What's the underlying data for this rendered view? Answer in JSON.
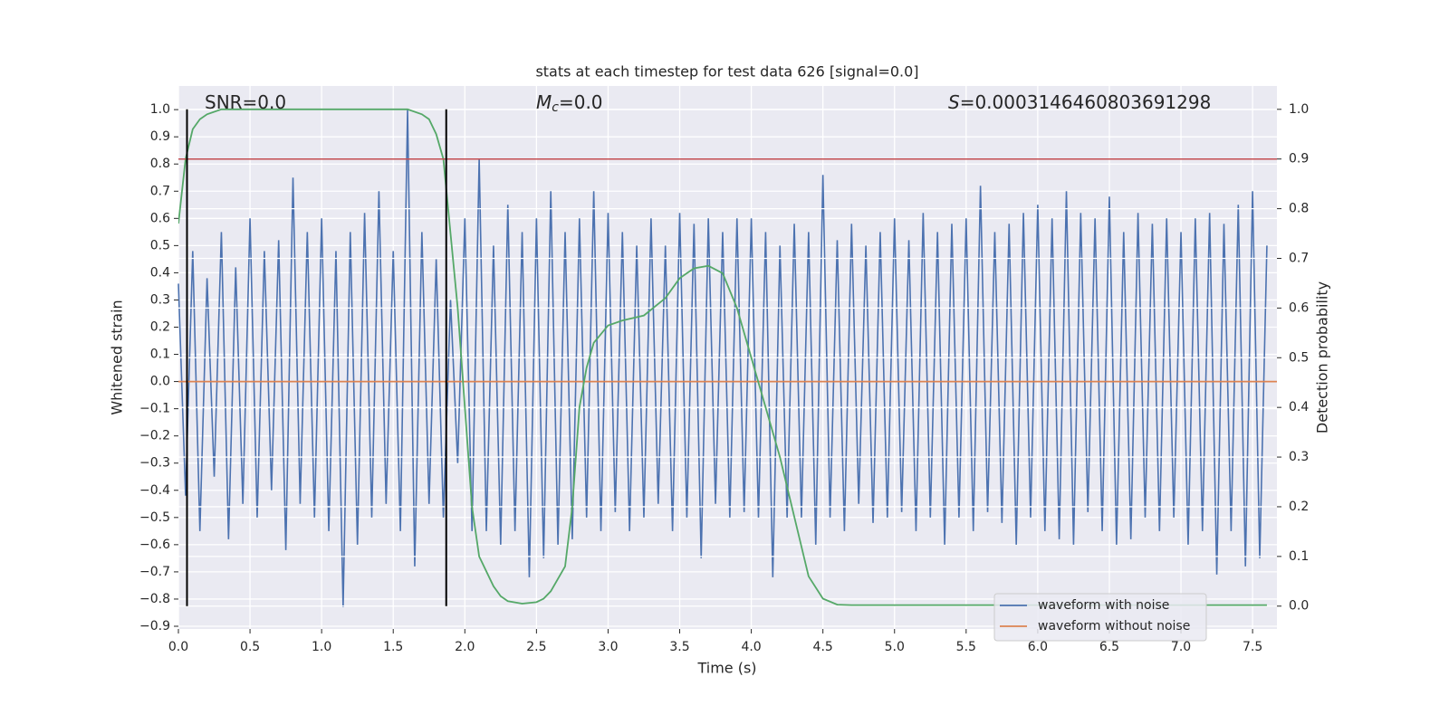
{
  "chart_data": {
    "type": "line",
    "title": "stats at each timestep for test data 626 [signal=0.0]",
    "x_label": "Time (s)",
    "y_label": "Whitened strain",
    "y2_label": "Detection probability",
    "xlim": [
      0,
      7.67
    ],
    "ylim": [
      -0.91,
      1.087
    ],
    "y2lim": [
      -0.046,
      1.047
    ],
    "grid": true,
    "legend": "lower right",
    "xticks": [
      {
        "value": 0,
        "label": "0.0"
      },
      {
        "value": 0.5,
        "label": "0.5"
      },
      {
        "value": 1,
        "label": "1.0"
      },
      {
        "value": 1.5,
        "label": "1.5"
      },
      {
        "value": 2,
        "label": "2.0"
      },
      {
        "value": 2.5,
        "label": "2.5"
      },
      {
        "value": 3,
        "label": "3.0"
      },
      {
        "value": 3.5,
        "label": "3.5"
      },
      {
        "value": 4,
        "label": "4.0"
      },
      {
        "value": 4.5,
        "label": "4.5"
      },
      {
        "value": 5,
        "label": "5.0"
      },
      {
        "value": 5.5,
        "label": "5.5"
      },
      {
        "value": 6,
        "label": "6.0"
      },
      {
        "value": 6.5,
        "label": "6.5"
      },
      {
        "value": 7,
        "label": "7.0"
      },
      {
        "value": 7.5,
        "label": "7.5"
      }
    ],
    "yticks": [
      {
        "value": -0.9,
        "label": "−0.9"
      },
      {
        "value": -0.8,
        "label": "−0.8"
      },
      {
        "value": -0.7,
        "label": "−0.7"
      },
      {
        "value": -0.6,
        "label": "−0.6"
      },
      {
        "value": -0.5,
        "label": "−0.5"
      },
      {
        "value": -0.4,
        "label": "−0.4"
      },
      {
        "value": -0.3,
        "label": "−0.3"
      },
      {
        "value": -0.2,
        "label": "−0.2"
      },
      {
        "value": -0.1,
        "label": "−0.1"
      },
      {
        "value": 0,
        "label": "0.0"
      },
      {
        "value": 0.1,
        "label": "0.1"
      },
      {
        "value": 0.2,
        "label": "0.2"
      },
      {
        "value": 0.3,
        "label": "0.3"
      },
      {
        "value": 0.4,
        "label": "0.4"
      },
      {
        "value": 0.5,
        "label": "0.5"
      },
      {
        "value": 0.6,
        "label": "0.6"
      },
      {
        "value": 0.7,
        "label": "0.7"
      },
      {
        "value": 0.8,
        "label": "0.8"
      },
      {
        "value": 0.9,
        "label": "0.9"
      },
      {
        "value": 1,
        "label": "1.0"
      }
    ],
    "y2ticks": [
      {
        "value": 0,
        "label": "0.0"
      },
      {
        "value": 0.1,
        "label": "0.1"
      },
      {
        "value": 0.2,
        "label": "0.2"
      },
      {
        "value": 0.3,
        "label": "0.3"
      },
      {
        "value": 0.4,
        "label": "0.4"
      },
      {
        "value": 0.5,
        "label": "0.5"
      },
      {
        "value": 0.6,
        "label": "0.6"
      },
      {
        "value": 0.7,
        "label": "0.7"
      },
      {
        "value": 0.8,
        "label": "0.8"
      },
      {
        "value": 0.9,
        "label": "0.9"
      },
      {
        "value": 1,
        "label": "1.0"
      }
    ],
    "series": [
      {
        "name": "waveform with noise",
        "color": "#4c72b0",
        "x": [
          0,
          0.05,
          0.1,
          0.15,
          0.2,
          0.25,
          0.3,
          0.35,
          0.4,
          0.45,
          0.5,
          0.55,
          0.6,
          0.65,
          0.7,
          0.75,
          0.8,
          0.85,
          0.9,
          0.95,
          1,
          1.05,
          1.1,
          1.15,
          1.2,
          1.25,
          1.3,
          1.35,
          1.4,
          1.45,
          1.5,
          1.55,
          1.6,
          1.65,
          1.7,
          1.75,
          1.8,
          1.85,
          1.9,
          1.95,
          2,
          2.05,
          2.1,
          2.15,
          2.2,
          2.25,
          2.3,
          2.35,
          2.4,
          2.45,
          2.5,
          2.55,
          2.6,
          2.65,
          2.7,
          2.75,
          2.8,
          2.85,
          2.9,
          2.95,
          3,
          3.05,
          3.1,
          3.15,
          3.2,
          3.25,
          3.3,
          3.35,
          3.4,
          3.45,
          3.5,
          3.55,
          3.6,
          3.65,
          3.7,
          3.75,
          3.8,
          3.85,
          3.9,
          3.95,
          4,
          4.05,
          4.1,
          4.15,
          4.2,
          4.25,
          4.3,
          4.35,
          4.4,
          4.45,
          4.5,
          4.55,
          4.6,
          4.65,
          4.7,
          4.75,
          4.8,
          4.85,
          4.9,
          4.95,
          5,
          5.05,
          5.1,
          5.15,
          5.2,
          5.25,
          5.3,
          5.35,
          5.4,
          5.45,
          5.5,
          5.55,
          5.6,
          5.65,
          5.7,
          5.75,
          5.8,
          5.85,
          5.9,
          5.95,
          6,
          6.05,
          6.1,
          6.15,
          6.2,
          6.25,
          6.3,
          6.35,
          6.4,
          6.45,
          6.5,
          6.55,
          6.6,
          6.65,
          6.7,
          6.75,
          6.8,
          6.85,
          6.9,
          6.95,
          7,
          7.05,
          7.1,
          7.15,
          7.2,
          7.25,
          7.3,
          7.35,
          7.4,
          7.45,
          7.5,
          7.55,
          7.6
        ],
        "values": [
          0.36,
          -0.42,
          0.48,
          -0.55,
          0.38,
          -0.35,
          0.55,
          -0.58,
          0.42,
          -0.45,
          0.6,
          -0.5,
          0.48,
          -0.4,
          0.52,
          -0.62,
          0.75,
          -0.45,
          0.55,
          -0.5,
          0.6,
          -0.55,
          0.48,
          -0.83,
          0.55,
          -0.6,
          0.62,
          -0.5,
          0.7,
          -0.45,
          0.48,
          -0.55,
          1.0,
          -0.68,
          0.55,
          -0.45,
          0.45,
          -0.5,
          0.3,
          -0.3,
          0.6,
          -0.55,
          0.82,
          -0.55,
          0.5,
          -0.6,
          0.65,
          -0.55,
          0.55,
          -0.72,
          0.6,
          -0.65,
          0.7,
          -0.6,
          0.55,
          -0.58,
          0.6,
          -0.5,
          0.7,
          -0.55,
          0.62,
          -0.48,
          0.55,
          -0.55,
          0.5,
          -0.5,
          0.6,
          -0.45,
          0.5,
          -0.55,
          0.62,
          -0.5,
          0.58,
          -0.65,
          0.6,
          -0.45,
          0.55,
          -0.5,
          0.6,
          -0.48,
          0.6,
          -0.5,
          0.55,
          -0.72,
          0.5,
          -0.5,
          0.58,
          -0.5,
          0.55,
          -0.6,
          0.76,
          -0.5,
          0.52,
          -0.55,
          0.58,
          -0.45,
          0.5,
          -0.52,
          0.55,
          -0.5,
          0.6,
          -0.48,
          0.52,
          -0.55,
          0.62,
          -0.5,
          0.55,
          -0.6,
          0.58,
          -0.5,
          0.6,
          -0.55,
          0.72,
          -0.48,
          0.55,
          -0.52,
          0.58,
          -0.6,
          0.62,
          -0.5,
          0.65,
          -0.55,
          0.6,
          -0.58,
          0.7,
          -0.6,
          0.62,
          -0.48,
          0.6,
          -0.55,
          0.68,
          -0.6,
          0.55,
          -0.58,
          0.62,
          -0.5,
          0.58,
          -0.55,
          0.6,
          -0.5,
          0.55,
          -0.6,
          0.6,
          -0.55,
          0.62,
          -0.71,
          0.58,
          -0.55,
          0.65,
          -0.68,
          0.7,
          -0.65,
          0.5
        ]
      },
      {
        "name": "waveform without noise",
        "color": "#dd8452",
        "x": [
          0,
          7.67
        ],
        "values": [
          0,
          0
        ]
      },
      {
        "color": "#55a868",
        "axis": "y2",
        "x": [
          0,
          0.05,
          0.1,
          0.15,
          0.2,
          0.3,
          0.5,
          1,
          1.5,
          1.6,
          1.7,
          1.75,
          1.8,
          1.85,
          1.9,
          1.95,
          2,
          2.05,
          2.1,
          2.15,
          2.2,
          2.25,
          2.3,
          2.4,
          2.5,
          2.55,
          2.6,
          2.7,
          2.75,
          2.8,
          2.85,
          2.9,
          3,
          3.1,
          3.25,
          3.4,
          3.5,
          3.6,
          3.7,
          3.8,
          3.9,
          4,
          4.1,
          4.2,
          4.3,
          4.4,
          4.5,
          4.6,
          4.7,
          5,
          7.6
        ],
        "values": [
          0.77,
          0.9,
          0.96,
          0.98,
          0.99,
          1,
          1,
          1,
          1,
          1,
          0.99,
          0.98,
          0.95,
          0.9,
          0.75,
          0.6,
          0.4,
          0.2,
          0.1,
          0.07,
          0.04,
          0.02,
          0.01,
          0.005,
          0.008,
          0.015,
          0.03,
          0.08,
          0.2,
          0.4,
          0.48,
          0.53,
          0.565,
          0.575,
          0.585,
          0.62,
          0.66,
          0.68,
          0.685,
          0.67,
          0.6,
          0.5,
          0.4,
          0.3,
          0.18,
          0.06,
          0.015,
          0.003,
          0.002,
          0.002,
          0.002
        ]
      }
    ],
    "hlines": [
      {
        "y": 0.9,
        "axis": "y2",
        "color": "#c44e52"
      }
    ],
    "vlines": [
      {
        "x": 0.06,
        "ymin": 0,
        "ymax": 1,
        "axis": "y2",
        "color": "#000000"
      },
      {
        "x": 1.87,
        "ymin": 0,
        "ymax": 1,
        "axis": "y2",
        "color": "#000000"
      }
    ],
    "annotations": [
      {
        "text": "SNR=0.0"
      },
      {
        "symbol": "M",
        "subscript": "c",
        "text": "=0.0"
      },
      {
        "symbol": "S",
        "text": "=0.0003146460803691298"
      }
    ]
  }
}
